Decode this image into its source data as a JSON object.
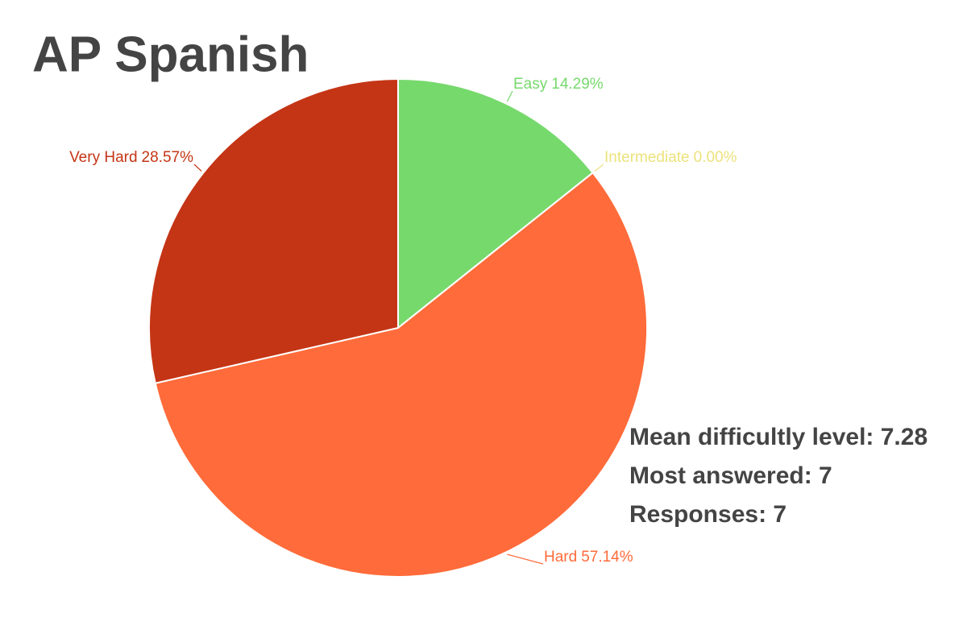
{
  "chart_data": {
    "type": "pie",
    "title": "AP Spanish",
    "categories": [
      "Easy",
      "Intermediate",
      "Hard",
      "Very Hard"
    ],
    "values": [
      14.29,
      0.0,
      57.14,
      28.57
    ],
    "value_labels": [
      "14.29%",
      "0.00%",
      "57.14%",
      "28.57%"
    ],
    "colors": [
      "#76d96c",
      "#ece27c",
      "#ff6b3a",
      "#c43515"
    ],
    "annotations": [
      "Mean difficultly level: 7.28",
      "Most answered: 7",
      "Responses: 7"
    ]
  }
}
